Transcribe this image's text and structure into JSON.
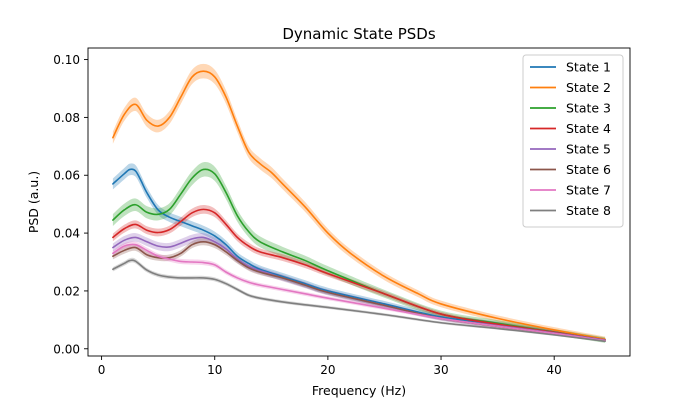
{
  "chart_data": {
    "type": "line",
    "title": "Dynamic State PSDs",
    "xlabel": "Frequency (Hz)",
    "ylabel": "PSD (a.u.)",
    "xlim": [
      -1.2,
      46.7
    ],
    "ylim": [
      -0.0025,
      0.104
    ],
    "xticks": [
      0,
      10,
      20,
      30,
      40
    ],
    "yticks": [
      0.0,
      0.02,
      0.04,
      0.06,
      0.08,
      0.1
    ],
    "xtick_labels": [
      "0",
      "10",
      "20",
      "30",
      "40"
    ],
    "ytick_labels": [
      "0.00",
      "0.02",
      "0.04",
      "0.06",
      "0.08",
      "0.10"
    ],
    "grid": false,
    "legend_position": "top-right",
    "series": [
      {
        "name": "State 1",
        "color": "#1f77b4",
        "band": 0.002,
        "x": [
          1,
          2,
          2.5,
          3,
          3.5,
          4,
          5,
          6,
          7,
          8,
          9,
          10,
          11,
          12,
          13,
          14,
          16,
          18,
          20,
          25,
          30,
          35,
          40,
          44.5
        ],
        "y": [
          0.057,
          0.0605,
          0.062,
          0.0615,
          0.058,
          0.054,
          0.048,
          0.0455,
          0.044,
          0.0425,
          0.041,
          0.039,
          0.036,
          0.032,
          0.0295,
          0.0275,
          0.025,
          0.0225,
          0.02,
          0.0155,
          0.011,
          0.0085,
          0.0058,
          0.003
        ]
      },
      {
        "name": "State 2",
        "color": "#ff7f0e",
        "band": 0.0025,
        "x": [
          1,
          2,
          3,
          4,
          5,
          6,
          7,
          8,
          9,
          10,
          11,
          12,
          13,
          14,
          15,
          16,
          18,
          20,
          22,
          25,
          28,
          30,
          35,
          40,
          44.5
        ],
        "y": [
          0.073,
          0.081,
          0.0845,
          0.079,
          0.077,
          0.08,
          0.087,
          0.094,
          0.096,
          0.094,
          0.087,
          0.077,
          0.068,
          0.064,
          0.061,
          0.057,
          0.049,
          0.04,
          0.033,
          0.025,
          0.019,
          0.0155,
          0.0105,
          0.0065,
          0.0033
        ]
      },
      {
        "name": "State 3",
        "color": "#2ca02c",
        "band": 0.0025,
        "x": [
          1,
          2,
          3,
          4,
          5,
          6,
          7,
          8,
          9,
          10,
          11,
          12,
          13,
          14,
          16,
          18,
          20,
          25,
          30,
          35,
          40,
          44.5
        ],
        "y": [
          0.0445,
          0.048,
          0.0498,
          0.0472,
          0.0465,
          0.0482,
          0.0535,
          0.059,
          0.062,
          0.0605,
          0.054,
          0.046,
          0.0405,
          0.037,
          0.0335,
          0.0305,
          0.027,
          0.019,
          0.012,
          0.0088,
          0.0058,
          0.003
        ]
      },
      {
        "name": "State 4",
        "color": "#d62728",
        "band": 0.0015,
        "x": [
          1,
          2,
          3,
          4,
          5,
          6,
          7,
          8,
          9,
          10,
          11,
          12,
          13,
          14,
          16,
          18,
          20,
          25,
          30,
          35,
          40,
          44.5
        ],
        "y": [
          0.0385,
          0.0415,
          0.043,
          0.041,
          0.0402,
          0.0412,
          0.044,
          0.047,
          0.0482,
          0.047,
          0.043,
          0.0385,
          0.0355,
          0.0335,
          0.0315,
          0.029,
          0.026,
          0.019,
          0.012,
          0.0085,
          0.0057,
          0.003
        ]
      },
      {
        "name": "State 5",
        "color": "#9467bd",
        "band": 0.0015,
        "x": [
          1,
          2,
          3,
          4,
          5,
          6,
          7,
          8,
          9,
          10,
          11,
          12,
          13,
          14,
          16,
          18,
          20,
          25,
          30,
          35,
          40,
          44.5
        ],
        "y": [
          0.035,
          0.0375,
          0.0385,
          0.037,
          0.0355,
          0.0352,
          0.0365,
          0.038,
          0.0385,
          0.037,
          0.0345,
          0.031,
          0.0285,
          0.027,
          0.0245,
          0.022,
          0.0195,
          0.015,
          0.0105,
          0.008,
          0.0055,
          0.003
        ]
      },
      {
        "name": "State 6",
        "color": "#8c564b",
        "band": 0.0012,
        "x": [
          1,
          2,
          3,
          4,
          5,
          6,
          7,
          8,
          9,
          10,
          11,
          12,
          13,
          14,
          16,
          18,
          20,
          25,
          30,
          35,
          40,
          44.5
        ],
        "y": [
          0.032,
          0.034,
          0.035,
          0.0325,
          0.0315,
          0.0315,
          0.033,
          0.036,
          0.037,
          0.036,
          0.0335,
          0.0305,
          0.028,
          0.0265,
          0.0245,
          0.022,
          0.0195,
          0.015,
          0.0105,
          0.0078,
          0.0053,
          0.0028
        ]
      },
      {
        "name": "State 7",
        "color": "#e377c2",
        "band": 0.001,
        "x": [
          1,
          2,
          3,
          4,
          5,
          6,
          7,
          8,
          9,
          10,
          11,
          12,
          13,
          14,
          16,
          18,
          20,
          25,
          30,
          35,
          40,
          44.5
        ],
        "y": [
          0.033,
          0.0355,
          0.036,
          0.034,
          0.032,
          0.031,
          0.0302,
          0.03,
          0.0298,
          0.029,
          0.0265,
          0.0245,
          0.023,
          0.022,
          0.0205,
          0.019,
          0.0175,
          0.014,
          0.0105,
          0.0078,
          0.0053,
          0.0028
        ]
      },
      {
        "name": "State 8",
        "color": "#7f7f7f",
        "band": 0.0008,
        "x": [
          1,
          2,
          2.5,
          3,
          4,
          5,
          6,
          7,
          8,
          9,
          10,
          11,
          12,
          13,
          14,
          16,
          18,
          20,
          25,
          30,
          35,
          40,
          44.5
        ],
        "y": [
          0.0275,
          0.0295,
          0.0305,
          0.0303,
          0.0272,
          0.0255,
          0.0248,
          0.0245,
          0.0245,
          0.0245,
          0.024,
          0.0225,
          0.0205,
          0.0185,
          0.0175,
          0.0162,
          0.0152,
          0.0143,
          0.0118,
          0.009,
          0.007,
          0.0048,
          0.0026
        ]
      }
    ]
  }
}
